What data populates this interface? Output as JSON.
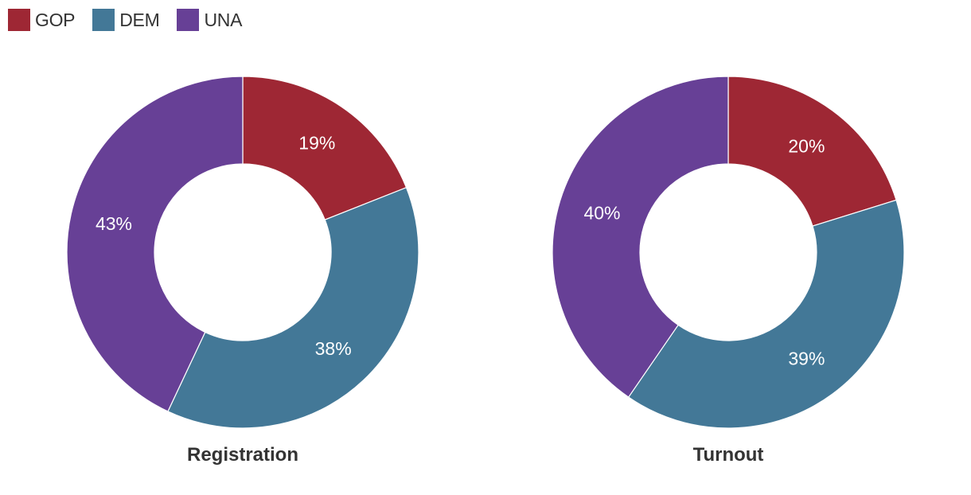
{
  "legend": [
    {
      "label": "GOP",
      "color": "#9e2734"
    },
    {
      "label": "DEM",
      "color": "#437897"
    },
    {
      "label": "UNA",
      "color": "#674096"
    }
  ],
  "chart_data": [
    {
      "type": "pie",
      "title": "Registration",
      "categories": [
        "GOP",
        "DEM",
        "UNA"
      ],
      "values": [
        19,
        38,
        43
      ],
      "labels": [
        "19%",
        "38%",
        "43%"
      ],
      "colors": [
        "#9e2734",
        "#437897",
        "#674096"
      ],
      "donut": true,
      "legend": "top-left"
    },
    {
      "type": "pie",
      "title": "Turnout",
      "categories": [
        "GOP",
        "DEM",
        "UNA"
      ],
      "values": [
        20,
        39,
        40
      ],
      "labels": [
        "20%",
        "39%",
        "40%"
      ],
      "colors": [
        "#9e2734",
        "#437897",
        "#674096"
      ],
      "donut": true,
      "legend": "top-left"
    }
  ]
}
